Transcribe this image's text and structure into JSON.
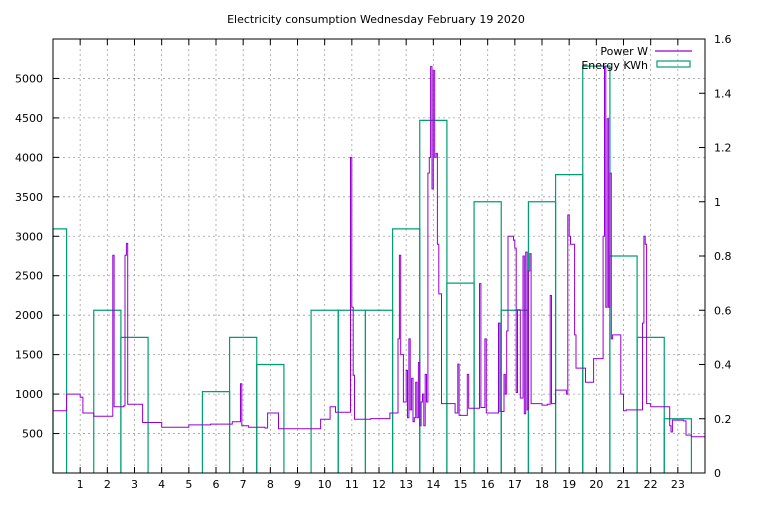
{
  "chart_data": {
    "type": "line",
    "title": "Electricity consumption Wednesday February 19 2020",
    "xlabel": "",
    "ylabel": "",
    "y2label": "",
    "x_ticks": [
      "1",
      "2",
      "3",
      "4",
      "5",
      "6",
      "7",
      "8",
      "9",
      "10",
      "11",
      "12",
      "13",
      "14",
      "15",
      "16",
      "17",
      "18",
      "19",
      "20",
      "21",
      "22",
      "23"
    ],
    "xlim": [
      0,
      24
    ],
    "y_ticks": [
      "500",
      "1000",
      "1500",
      "2000",
      "2500",
      "3000",
      "3500",
      "4000",
      "4500",
      "5000"
    ],
    "ylim": [
      0,
      5500
    ],
    "y2_ticks": [
      "0",
      "0.2",
      "0.4",
      "0.6",
      "0.8",
      "1",
      "1.2",
      "1.4",
      "1.6"
    ],
    "y2lim": [
      0,
      1.6
    ],
    "grid": true,
    "legend_position": "top-right",
    "colors": {
      "power": "#9400d3",
      "energy": "#009e73"
    },
    "series": [
      {
        "name": "Power W",
        "axis": "left",
        "style": "step",
        "points": [
          [
            0.0,
            790
          ],
          [
            0.5,
            1000
          ],
          [
            1.0,
            960
          ],
          [
            1.1,
            760
          ],
          [
            1.5,
            720
          ],
          [
            2.0,
            720
          ],
          [
            2.2,
            2760
          ],
          [
            2.25,
            840
          ],
          [
            2.6,
            850
          ],
          [
            2.65,
            2760
          ],
          [
            2.7,
            2910
          ],
          [
            2.75,
            870
          ],
          [
            3.3,
            640
          ],
          [
            4.0,
            580
          ],
          [
            5.0,
            610
          ],
          [
            5.8,
            620
          ],
          [
            6.6,
            650
          ],
          [
            6.9,
            1130
          ],
          [
            6.95,
            600
          ],
          [
            7.2,
            580
          ],
          [
            7.8,
            570
          ],
          [
            7.9,
            760
          ],
          [
            8.3,
            560
          ],
          [
            9.0,
            560
          ],
          [
            9.8,
            560
          ],
          [
            9.85,
            680
          ],
          [
            10.2,
            840
          ],
          [
            10.4,
            770
          ],
          [
            10.95,
            4000
          ],
          [
            11.0,
            2100
          ],
          [
            11.05,
            1240
          ],
          [
            11.1,
            680
          ],
          [
            11.7,
            690
          ],
          [
            12.0,
            690
          ],
          [
            12.4,
            760
          ],
          [
            12.7,
            1700
          ],
          [
            12.75,
            2760
          ],
          [
            12.8,
            1500
          ],
          [
            12.9,
            900
          ],
          [
            13.0,
            1300
          ],
          [
            13.05,
            700
          ],
          [
            13.1,
            1700
          ],
          [
            13.15,
            800
          ],
          [
            13.2,
            1200
          ],
          [
            13.25,
            650
          ],
          [
            13.3,
            700
          ],
          [
            13.35,
            1150
          ],
          [
            13.4,
            700
          ],
          [
            13.45,
            1400
          ],
          [
            13.5,
            600
          ],
          [
            13.55,
            900
          ],
          [
            13.6,
            1000
          ],
          [
            13.65,
            600
          ],
          [
            13.7,
            1250
          ],
          [
            13.75,
            900
          ],
          [
            13.8,
            3800
          ],
          [
            13.85,
            4000
          ],
          [
            13.9,
            5150
          ],
          [
            13.95,
            3600
          ],
          [
            14.0,
            5100
          ],
          [
            14.05,
            4000
          ],
          [
            14.1,
            4050
          ],
          [
            14.15,
            2900
          ],
          [
            14.2,
            2270
          ],
          [
            14.3,
            880
          ],
          [
            14.8,
            760
          ],
          [
            14.9,
            1380
          ],
          [
            14.95,
            730
          ],
          [
            15.2,
            730
          ],
          [
            15.25,
            1250
          ],
          [
            15.3,
            820
          ],
          [
            15.7,
            2400
          ],
          [
            15.75,
            830
          ],
          [
            15.9,
            1700
          ],
          [
            15.95,
            760
          ],
          [
            16.4,
            1900
          ],
          [
            16.45,
            780
          ],
          [
            16.6,
            1250
          ],
          [
            16.65,
            1000
          ],
          [
            16.7,
            1800
          ],
          [
            16.75,
            3000
          ],
          [
            16.95,
            2950
          ],
          [
            17.0,
            2850
          ],
          [
            17.05,
            1020
          ],
          [
            17.1,
            2070
          ],
          [
            17.2,
            950
          ],
          [
            17.3,
            2750
          ],
          [
            17.35,
            750
          ],
          [
            17.4,
            2800
          ],
          [
            17.45,
            800
          ],
          [
            17.5,
            2560
          ],
          [
            17.55,
            2780
          ],
          [
            17.6,
            880
          ],
          [
            18.0,
            860
          ],
          [
            18.2,
            870
          ],
          [
            18.3,
            2250
          ],
          [
            18.35,
            880
          ],
          [
            18.5,
            1050
          ],
          [
            18.9,
            1000
          ],
          [
            18.95,
            3270
          ],
          [
            19.0,
            3000
          ],
          [
            19.05,
            2900
          ],
          [
            19.2,
            1750
          ],
          [
            19.25,
            1330
          ],
          [
            19.6,
            1150
          ],
          [
            19.9,
            1450
          ],
          [
            20.2,
            1450
          ],
          [
            20.25,
            3000
          ],
          [
            20.3,
            5150
          ],
          [
            20.35,
            2100
          ],
          [
            20.4,
            4490
          ],
          [
            20.45,
            2100
          ],
          [
            20.5,
            3800
          ],
          [
            20.55,
            1700
          ],
          [
            20.6,
            1750
          ],
          [
            20.9,
            1000
          ],
          [
            21.0,
            790
          ],
          [
            21.1,
            800
          ],
          [
            21.7,
            1900
          ],
          [
            21.75,
            3000
          ],
          [
            21.8,
            2900
          ],
          [
            21.85,
            880
          ],
          [
            22.0,
            840
          ],
          [
            22.6,
            840
          ],
          [
            22.7,
            600
          ],
          [
            22.75,
            520
          ],
          [
            22.8,
            670
          ],
          [
            23.2,
            660
          ],
          [
            23.3,
            480
          ],
          [
            23.5,
            460
          ],
          [
            24.0,
            460
          ]
        ]
      },
      {
        "name": "Energy KWh",
        "axis": "right",
        "style": "histeps",
        "categories": [
          0,
          1,
          2,
          3,
          4,
          5,
          6,
          7,
          8,
          9,
          10,
          11,
          12,
          13,
          14,
          15,
          16,
          17,
          18,
          19,
          20,
          21,
          22,
          23
        ],
        "values": [
          0.9,
          0,
          0.6,
          0.5,
          0,
          0,
          0.3,
          0.5,
          0.4,
          0,
          0.6,
          0.6,
          0.6,
          0.9,
          1.3,
          0.7,
          1.0,
          0.6,
          1.0,
          1.1,
          1.5,
          0.8,
          0.5,
          0.2
        ]
      }
    ]
  }
}
